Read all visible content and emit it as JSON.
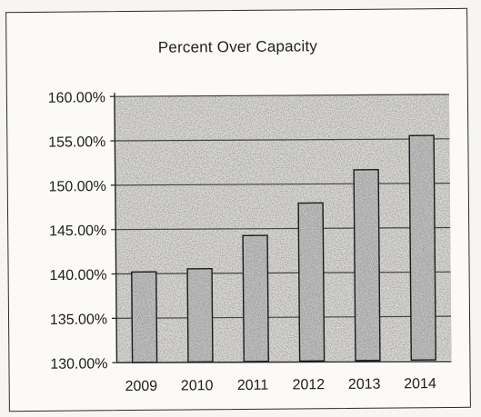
{
  "chart_data": {
    "type": "bar",
    "title": "Percent Over Capacity",
    "xlabel": "",
    "ylabel": "",
    "categories": [
      "2009",
      "2010",
      "2011",
      "2012",
      "2013",
      "2014"
    ],
    "values": [
      140.2,
      140.5,
      144.2,
      147.8,
      151.5,
      155.3
    ],
    "ylim": [
      130,
      160
    ],
    "yticks": [
      130,
      135,
      140,
      145,
      150,
      155,
      160
    ],
    "yticklabels": [
      "130.00%",
      "135.00%",
      "140.00%",
      "145.00%",
      "150.00%",
      "155.00%",
      "160.00%"
    ],
    "grid": true,
    "legend": "none",
    "colors": {
      "bar_fill": "#8d8d8d",
      "bar_stroke": "#1a1a1a",
      "grid": "#444444",
      "axis": "#222222"
    }
  }
}
